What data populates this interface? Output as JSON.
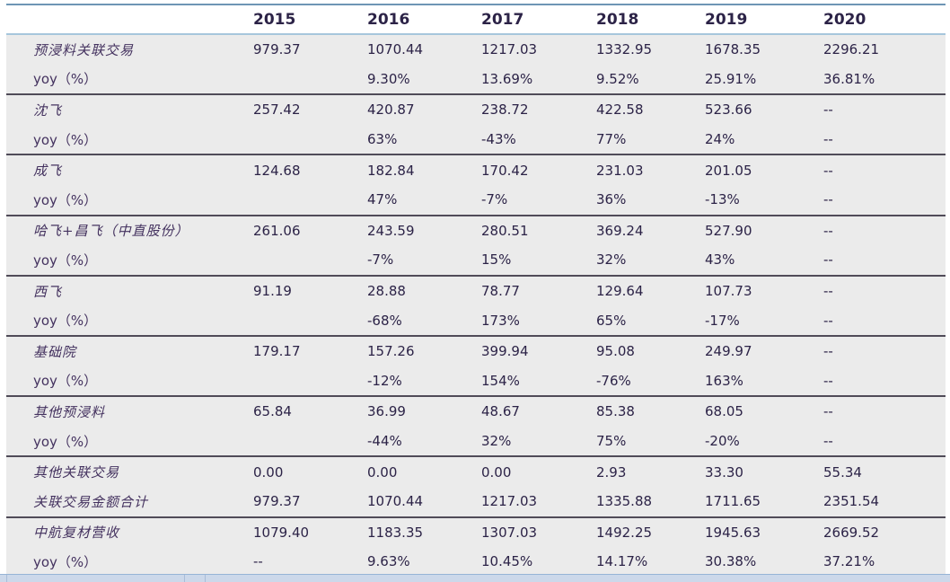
{
  "header": {
    "years": [
      "2015",
      "2016",
      "2017",
      "2018",
      "2019",
      "2020"
    ]
  },
  "groups": [
    {
      "rows": [
        {
          "label": "预浸料关联交易",
          "values": [
            "979.37",
            "1070.44",
            "1217.03",
            "1332.95",
            "1678.35",
            "2296.21"
          ]
        },
        {
          "label": "yoy（%）",
          "values": [
            "",
            "9.30%",
            "13.69%",
            "9.52%",
            "25.91%",
            "36.81%"
          ]
        }
      ]
    },
    {
      "rows": [
        {
          "label": "沈飞",
          "values": [
            "257.42",
            "420.87",
            "238.72",
            "422.58",
            "523.66",
            "--"
          ]
        },
        {
          "label": "yoy（%）",
          "values": [
            "",
            "63%",
            "-43%",
            "77%",
            "24%",
            "--"
          ]
        }
      ]
    },
    {
      "rows": [
        {
          "label": "成飞",
          "values": [
            "124.68",
            "182.84",
            "170.42",
            "231.03",
            "201.05",
            "--"
          ]
        },
        {
          "label": "yoy（%）",
          "values": [
            "",
            "47%",
            "-7%",
            "36%",
            "-13%",
            "--"
          ]
        }
      ]
    },
    {
      "rows": [
        {
          "label": "哈飞+昌飞（中直股份）",
          "values": [
            "261.06",
            "243.59",
            "280.51",
            "369.24",
            "527.90",
            "--"
          ]
        },
        {
          "label": "yoy（%）",
          "values": [
            "",
            "-7%",
            "15%",
            "32%",
            "43%",
            "--"
          ]
        }
      ]
    },
    {
      "rows": [
        {
          "label": "西飞",
          "values": [
            "91.19",
            "28.88",
            "78.77",
            "129.64",
            "107.73",
            "--"
          ]
        },
        {
          "label": "yoy（%）",
          "values": [
            "",
            "-68%",
            "173%",
            "65%",
            "-17%",
            "--"
          ]
        }
      ]
    },
    {
      "rows": [
        {
          "label": "基础院",
          "values": [
            "179.17",
            "157.26",
            "399.94",
            "95.08",
            "249.97",
            "--"
          ]
        },
        {
          "label": "yoy（%）",
          "values": [
            "",
            "-12%",
            "154%",
            "-76%",
            "163%",
            "--"
          ]
        }
      ]
    },
    {
      "rows": [
        {
          "label": "其他预浸料",
          "values": [
            "65.84",
            "36.99",
            "48.67",
            "85.38",
            "68.05",
            "--"
          ]
        },
        {
          "label": "yoy（%）",
          "values": [
            "",
            "-44%",
            "32%",
            "75%",
            "-20%",
            "--"
          ]
        }
      ]
    },
    {
      "rows": [
        {
          "label": "其他关联交易",
          "values": [
            "0.00",
            "0.00",
            "0.00",
            "2.93",
            "33.30",
            "55.34"
          ]
        },
        {
          "label": "关联交易金额合计",
          "values": [
            "979.37",
            "1070.44",
            "1217.03",
            "1335.88",
            "1711.65",
            "2351.54"
          ]
        }
      ]
    },
    {
      "rows": [
        {
          "label": "中航复材营收",
          "values": [
            "1079.40",
            "1183.35",
            "1307.03",
            "1492.25",
            "1945.63",
            "2669.52"
          ]
        },
        {
          "label": "yoy（%）",
          "values": [
            "--",
            "9.63%",
            "10.45%",
            "14.17%",
            "30.38%",
            "37.21%"
          ]
        }
      ]
    }
  ],
  "colors": {
    "top_rule": "#6e95b5",
    "header_rule": "#a6c6dc",
    "group_rule": "#504b58",
    "body_background": "#ebebeb",
    "label_text": "#44325f",
    "value_text": "#2c2347",
    "bottom_strip": "#ccd8ea"
  }
}
